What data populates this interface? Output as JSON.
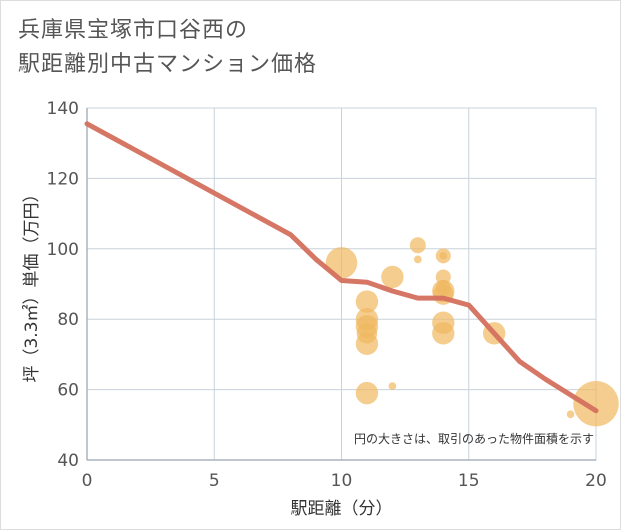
{
  "title_line1": "兵庫県宝塚市口谷西の",
  "title_line2": "駅距離別中古マンション価格",
  "chart_data": {
    "type": "scatter",
    "title": "兵庫県宝塚市口谷西の駅距離別中古マンション価格",
    "xlabel": "駅距離（分）",
    "ylabel": "坪（3.3㎡）単価（万円）",
    "xlim": [
      0,
      20
    ],
    "ylim": [
      40,
      140
    ],
    "xticks": [
      0,
      5,
      10,
      15,
      20
    ],
    "yticks": [
      40,
      60,
      80,
      100,
      120,
      140
    ],
    "grid": true,
    "note": "円の大きさは、取引のあった物件面積を示す",
    "points": [
      {
        "x": 10,
        "y": 96,
        "size": 3.0
      },
      {
        "x": 11,
        "y": 85,
        "size": 2.0
      },
      {
        "x": 11,
        "y": 80,
        "size": 2.0
      },
      {
        "x": 11,
        "y": 78,
        "size": 2.0
      },
      {
        "x": 11,
        "y": 76,
        "size": 1.8
      },
      {
        "x": 11,
        "y": 73,
        "size": 2.0
      },
      {
        "x": 11,
        "y": 59,
        "size": 2.0
      },
      {
        "x": 12,
        "y": 92,
        "size": 2.0
      },
      {
        "x": 12,
        "y": 61,
        "size": 0.4
      },
      {
        "x": 13,
        "y": 101,
        "size": 1.3
      },
      {
        "x": 13,
        "y": 97,
        "size": 0.4
      },
      {
        "x": 14,
        "y": 98,
        "size": 1.2
      },
      {
        "x": 14,
        "y": 98,
        "size": 0.4
      },
      {
        "x": 14,
        "y": 92,
        "size": 1.2
      },
      {
        "x": 14,
        "y": 89,
        "size": 1.2
      },
      {
        "x": 14,
        "y": 88,
        "size": 2.0
      },
      {
        "x": 14,
        "y": 87,
        "size": 1.8
      },
      {
        "x": 14,
        "y": 79,
        "size": 2.0
      },
      {
        "x": 14,
        "y": 76,
        "size": 2.0
      },
      {
        "x": 16,
        "y": 76,
        "size": 2.0
      },
      {
        "x": 19,
        "y": 53,
        "size": 0.4
      },
      {
        "x": 20,
        "y": 56,
        "size": 4.5
      }
    ],
    "trend_line": {
      "x": [
        0,
        8,
        9,
        10,
        11,
        12,
        13,
        14,
        15,
        16,
        17,
        18,
        19,
        20
      ],
      "y": [
        135.5,
        104,
        97,
        91,
        90.5,
        88,
        86,
        86,
        84,
        76,
        68,
        63,
        58.5,
        54
      ]
    },
    "colors": {
      "bubble": "#f0b860",
      "trend": "#d4705e",
      "grid": "#c8d3dc",
      "axis": "#aab4bd"
    }
  }
}
